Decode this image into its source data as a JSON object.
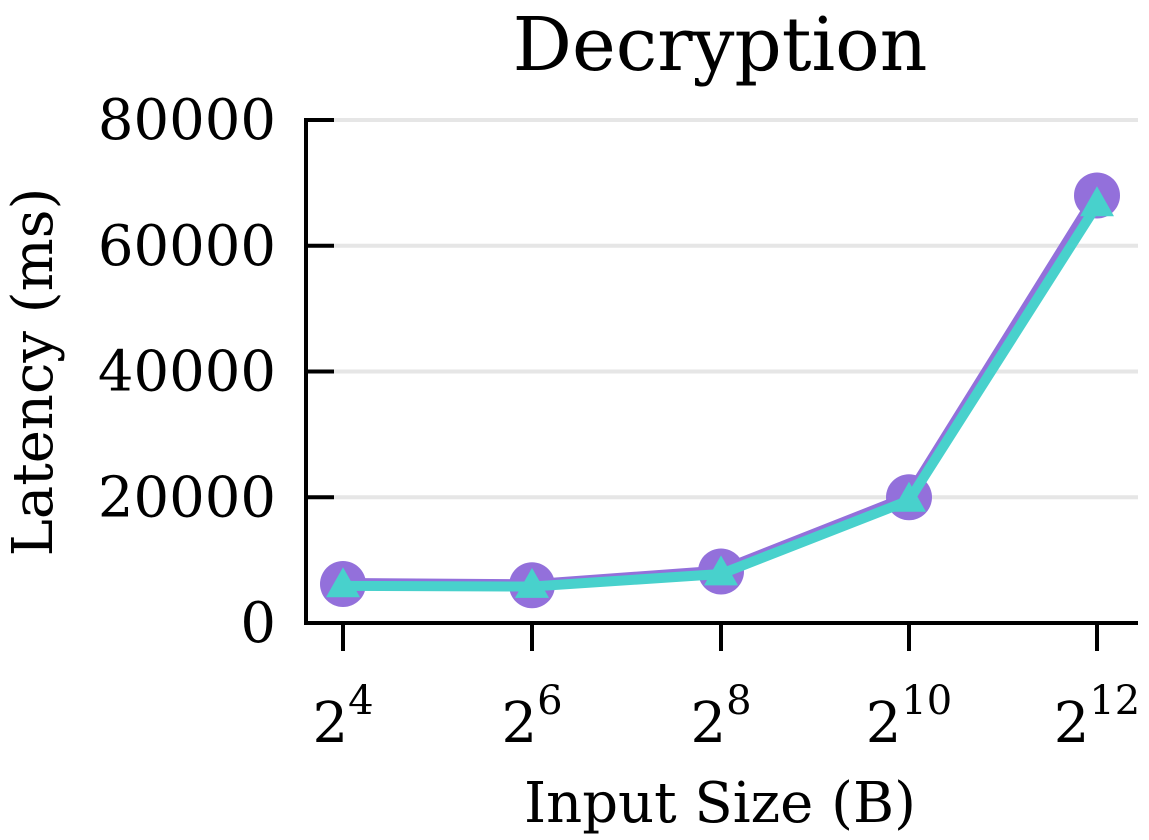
{
  "chart_data": {
    "type": "line",
    "title": "Decryption",
    "xlabel": "Input Size (B)",
    "ylabel": "Latency (ms)",
    "x_ticks": [
      {
        "base": "2",
        "exp": "4"
      },
      {
        "base": "2",
        "exp": "6"
      },
      {
        "base": "2",
        "exp": "8"
      },
      {
        "base": "2",
        "exp": "10"
      },
      {
        "base": "2",
        "exp": "12"
      }
    ],
    "x": [
      16,
      64,
      256,
      1024,
      4096
    ],
    "y_ticks": [
      "0",
      "20000",
      "40000",
      "60000",
      "80000"
    ],
    "ylim": [
      0,
      80000
    ],
    "grid": "horizontal",
    "series": [
      {
        "values": [
          6200,
          6000,
          8200,
          20000,
          68000
        ],
        "color": "#9370db",
        "marker": "circle"
      },
      {
        "values": [
          5900,
          5800,
          7800,
          19500,
          66500
        ],
        "color": "#48d1cc",
        "marker": "triangle"
      }
    ]
  }
}
